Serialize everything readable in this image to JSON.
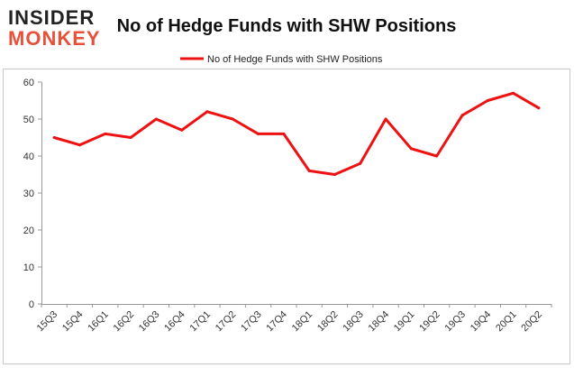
{
  "brand": {
    "line1": "INSIDER",
    "line2": "MONKEY",
    "color_top": "#222222",
    "color_bottom": "#e8503a"
  },
  "chart_data": {
    "type": "line",
    "title": "No of Hedge Funds with SHW Positions",
    "xlabel": "",
    "ylabel": "",
    "ylim": [
      0,
      60
    ],
    "yticks": [
      0,
      10,
      20,
      30,
      40,
      50,
      60
    ],
    "grid": false,
    "legend_position": "top-center",
    "categories": [
      "15Q3",
      "15Q4",
      "16Q1",
      "16Q2",
      "16Q3",
      "16Q4",
      "17Q1",
      "17Q2",
      "17Q3",
      "17Q4",
      "18Q1",
      "18Q2",
      "18Q3",
      "18Q4",
      "19Q1",
      "19Q2",
      "19Q3",
      "19Q4",
      "20Q1",
      "20Q2"
    ],
    "series": [
      {
        "name": "No of Hedge Funds with SHW Positions",
        "color": "#ee1111",
        "values": [
          45,
          43,
          46,
          45,
          50,
          47,
          52,
          50,
          46,
          46,
          36,
          35,
          38,
          50,
          42,
          40,
          51,
          55,
          57,
          53
        ]
      }
    ]
  }
}
